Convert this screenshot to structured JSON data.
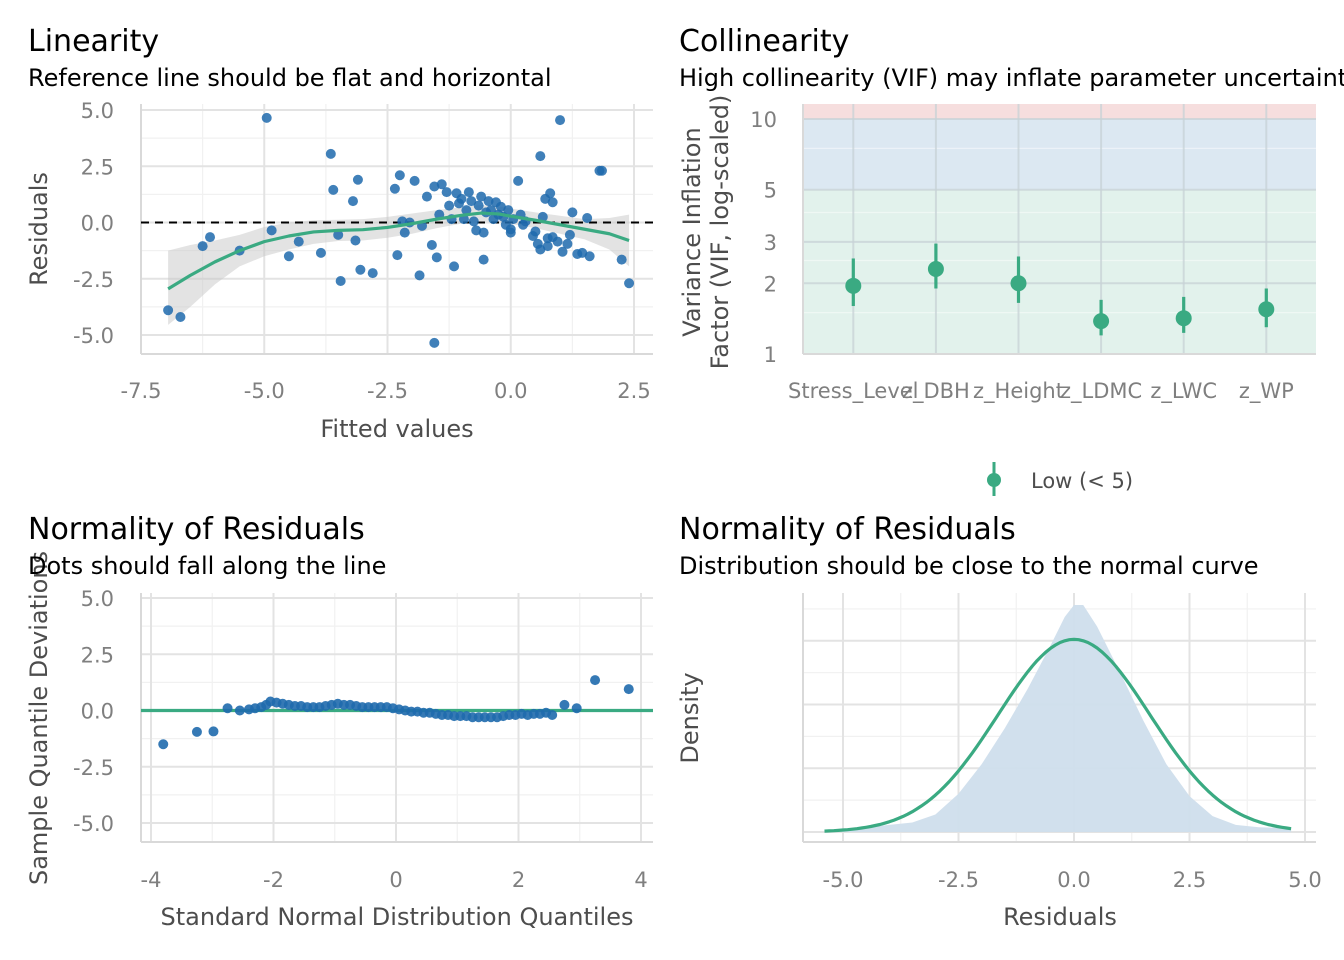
{
  "colors": {
    "points": "#1f6aad",
    "accent": "#3aaa82",
    "band": "#c8c8c8",
    "grid_major": "#e3e3e3",
    "grid_minor": "#f1f1f1",
    "axis_text": "#7f7f7f",
    "vif_low": "#e2f2ec",
    "vif_moderate": "#dce8f2",
    "vif_high": "#f6dede",
    "density_fill": "#cfdeec"
  },
  "chart_data": [
    {
      "type": "scatter",
      "title": "Linearity",
      "subtitle": "Reference line should be flat and horizontal",
      "xlabel": "Fitted values",
      "ylabel": "Residuals",
      "xlim": [
        -7.5,
        2.75
      ],
      "ylim": [
        -5.8,
        5.3
      ],
      "xticks": [
        -7.5,
        -5,
        -2.5,
        0,
        2.5
      ],
      "xtick_labels": [
        "-7.5",
        "-5.0",
        "-2.5",
        "0.0",
        "2.5"
      ],
      "yticks": [
        -5,
        -2.5,
        0,
        2.5,
        5
      ],
      "ytick_labels": [
        "-5.0",
        "-2.5",
        "0.0",
        "2.5",
        "5.0"
      ],
      "grid": true,
      "reference_line_y": 0,
      "points": [
        [
          -6.95,
          -3.9
        ],
        [
          -6.7,
          -4.2
        ],
        [
          -6.25,
          -1.05
        ],
        [
          -6.1,
          -0.65
        ],
        [
          -5.5,
          -1.25
        ],
        [
          -4.95,
          4.65
        ],
        [
          -4.85,
          -0.35
        ],
        [
          -4.5,
          -1.5
        ],
        [
          -4.3,
          -0.85
        ],
        [
          -3.85,
          -1.35
        ],
        [
          -3.65,
          3.05
        ],
        [
          -3.6,
          1.45
        ],
        [
          -3.5,
          -0.55
        ],
        [
          -3.45,
          -2.6
        ],
        [
          -3.2,
          0.95
        ],
        [
          -3.15,
          -0.8
        ],
        [
          -3.1,
          1.9
        ],
        [
          -3.05,
          -2.1
        ],
        [
          -2.8,
          -2.25
        ],
        [
          -2.35,
          1.5
        ],
        [
          -2.3,
          -1.45
        ],
        [
          -2.25,
          2.1
        ],
        [
          -2.2,
          0.05
        ],
        [
          -2.15,
          -0.45
        ],
        [
          -2.05,
          0.0
        ],
        [
          -1.95,
          1.85
        ],
        [
          -1.85,
          -2.35
        ],
        [
          -1.8,
          -0.15
        ],
        [
          -1.7,
          1.15
        ],
        [
          -1.6,
          -1.0
        ],
        [
          -1.55,
          1.6
        ],
        [
          -1.55,
          -5.35
        ],
        [
          -1.5,
          -1.55
        ],
        [
          -1.45,
          0.35
        ],
        [
          -1.4,
          1.7
        ],
        [
          -1.3,
          1.35
        ],
        [
          -1.25,
          0.75
        ],
        [
          -1.2,
          0.15
        ],
        [
          -1.15,
          -1.95
        ],
        [
          -1.1,
          1.3
        ],
        [
          -1.05,
          0.85
        ],
        [
          -1.0,
          1.05
        ],
        [
          -0.95,
          0.15
        ],
        [
          -0.9,
          0.55
        ],
        [
          -0.85,
          1.35
        ],
        [
          -0.8,
          0.95
        ],
        [
          -0.75,
          0.05
        ],
        [
          -0.7,
          -0.35
        ],
        [
          -0.65,
          0.75
        ],
        [
          -0.6,
          1.15
        ],
        [
          -0.55,
          -1.65
        ],
        [
          -0.55,
          -0.45
        ],
        [
          -0.5,
          0.45
        ],
        [
          -0.45,
          0.95
        ],
        [
          -0.4,
          0.55
        ],
        [
          -0.35,
          0.15
        ],
        [
          -0.3,
          0.9
        ],
        [
          -0.25,
          0.35
        ],
        [
          -0.2,
          0.7
        ],
        [
          -0.15,
          0.25
        ],
        [
          -0.1,
          -0.1
        ],
        [
          -0.05,
          0.55
        ],
        [
          0.0,
          -0.45
        ],
        [
          0.0,
          -0.3
        ],
        [
          0.05,
          0.15
        ],
        [
          0.15,
          1.85
        ],
        [
          0.2,
          0.35
        ],
        [
          0.25,
          -0.1
        ],
        [
          0.3,
          0.05
        ],
        [
          0.45,
          -0.6
        ],
        [
          0.5,
          -0.4
        ],
        [
          0.55,
          -0.95
        ],
        [
          0.6,
          2.95
        ],
        [
          0.6,
          -1.2
        ],
        [
          0.65,
          0.25
        ],
        [
          0.7,
          1.05
        ],
        [
          0.75,
          -0.7
        ],
        [
          0.75,
          -1.05
        ],
        [
          0.8,
          1.3
        ],
        [
          0.85,
          0.9
        ],
        [
          0.85,
          -0.65
        ],
        [
          0.95,
          -0.85
        ],
        [
          1.0,
          4.55
        ],
        [
          1.05,
          -1.3
        ],
        [
          1.15,
          -0.95
        ],
        [
          1.2,
          -0.55
        ],
        [
          1.25,
          0.45
        ],
        [
          1.35,
          -1.4
        ],
        [
          1.45,
          -1.35
        ],
        [
          1.55,
          0.2
        ],
        [
          1.6,
          -1.5
        ],
        [
          1.8,
          2.3
        ],
        [
          1.85,
          2.3
        ],
        [
          2.25,
          -1.65
        ],
        [
          2.4,
          -2.7
        ]
      ],
      "smooth_curve": [
        [
          -6.95,
          -2.95
        ],
        [
          -6.5,
          -2.35
        ],
        [
          -6.0,
          -1.75
        ],
        [
          -5.5,
          -1.25
        ],
        [
          -5.0,
          -0.85
        ],
        [
          -4.5,
          -0.6
        ],
        [
          -4.0,
          -0.42
        ],
        [
          -3.5,
          -0.35
        ],
        [
          -3.0,
          -0.32
        ],
        [
          -2.5,
          -0.22
        ],
        [
          -2.0,
          -0.05
        ],
        [
          -1.5,
          0.15
        ],
        [
          -1.0,
          0.32
        ],
        [
          -0.6,
          0.42
        ],
        [
          -0.25,
          0.38
        ],
        [
          0.0,
          0.28
        ],
        [
          0.5,
          0.1
        ],
        [
          1.0,
          -0.1
        ],
        [
          1.5,
          -0.3
        ],
        [
          2.0,
          -0.5
        ],
        [
          2.4,
          -0.8
        ]
      ],
      "band_upper": [
        [
          -6.95,
          -1.25
        ],
        [
          -6.5,
          -1.0
        ],
        [
          -6.0,
          -0.8
        ],
        [
          -5.5,
          -0.55
        ],
        [
          -5.0,
          -0.2
        ],
        [
          -4.5,
          0.0
        ],
        [
          -4.0,
          0.1
        ],
        [
          -3.5,
          0.12
        ],
        [
          -3.0,
          0.15
        ],
        [
          -2.5,
          0.25
        ],
        [
          -2.0,
          0.4
        ],
        [
          -1.5,
          0.55
        ],
        [
          -1.0,
          0.68
        ],
        [
          -0.6,
          0.78
        ],
        [
          -0.25,
          0.72
        ],
        [
          0.0,
          0.62
        ],
        [
          0.5,
          0.45
        ],
        [
          1.0,
          0.3
        ],
        [
          1.5,
          0.15
        ],
        [
          2.0,
          0.2
        ],
        [
          2.4,
          0.35
        ]
      ],
      "band_lower": [
        [
          -6.95,
          -4.55
        ],
        [
          -6.5,
          -3.75
        ],
        [
          -6.0,
          -2.75
        ],
        [
          -5.5,
          -1.95
        ],
        [
          -5.0,
          -1.5
        ],
        [
          -4.5,
          -1.2
        ],
        [
          -4.0,
          -0.95
        ],
        [
          -3.5,
          -0.82
        ],
        [
          -3.0,
          -0.8
        ],
        [
          -2.5,
          -0.68
        ],
        [
          -2.0,
          -0.5
        ],
        [
          -1.5,
          -0.25
        ],
        [
          -1.0,
          -0.05
        ],
        [
          -0.6,
          0.05
        ],
        [
          -0.25,
          0.02
        ],
        [
          0.0,
          -0.06
        ],
        [
          0.5,
          -0.25
        ],
        [
          1.0,
          -0.5
        ],
        [
          1.5,
          -0.75
        ],
        [
          2.0,
          -1.2
        ],
        [
          2.4,
          -1.95
        ]
      ]
    },
    {
      "type": "scatter",
      "title": "Collinearity",
      "subtitle": "High collinearity (VIF) may inflate parameter uncertainty",
      "xlabel": "",
      "ylabel": "Variance Inflation\nFactor (VIF, log-scaled)",
      "ylabel_lines": [
        "Variance Inflation",
        "Factor (VIF, log-scaled)"
      ],
      "y_scale": "log",
      "ylim": [
        1,
        12
      ],
      "yticks": [
        1,
        2,
        3,
        5,
        10
      ],
      "ytick_labels": [
        "1",
        "2",
        "3",
        "5",
        "10"
      ],
      "categories": [
        "Stress_Level",
        "z_DBH",
        "z_Height",
        "z_LDMC",
        "z_LWC",
        "z_WP"
      ],
      "vif": [
        1.95,
        2.3,
        2.0,
        1.38,
        1.42,
        1.55
      ],
      "ci_low": [
        1.6,
        1.9,
        1.65,
        1.2,
        1.23,
        1.3
      ],
      "ci_high": [
        2.55,
        2.95,
        2.6,
        1.7,
        1.75,
        1.9
      ],
      "zones": [
        {
          "from": 1,
          "to": 5,
          "color": "#e2f2ec"
        },
        {
          "from": 5,
          "to": 10,
          "color": "#dce8f2"
        },
        {
          "from": 10,
          "to": 12,
          "color": "#f6dede"
        }
      ],
      "legend": {
        "label": "Low (< 5)",
        "placement": "bottom"
      }
    },
    {
      "type": "scatter",
      "title": "Normality of Residuals",
      "subtitle": "Dots should fall along the line",
      "xlabel": "Standard Normal Distribution Quantiles",
      "ylabel": "Sample Quantile Deviations",
      "xlim": [
        -4.2,
        4.2
      ],
      "ylim": [
        -5.8,
        5.3
      ],
      "xticks": [
        -4,
        -2,
        0,
        2,
        4
      ],
      "xtick_labels": [
        "-4",
        "-2",
        "0",
        "2",
        "4"
      ],
      "yticks": [
        -5,
        -2.5,
        0,
        2.5,
        5
      ],
      "ytick_labels": [
        "-5.0",
        "-2.5",
        "0.0",
        "2.5",
        "5.0"
      ],
      "reference_line_y": 0,
      "sample_deviations": [
        [
          -3.8,
          -1.5
        ],
        [
          -3.25,
          -0.95
        ],
        [
          -2.98,
          -0.93
        ],
        [
          -2.75,
          0.1
        ],
        [
          -2.55,
          0.0
        ],
        [
          -2.4,
          0.05
        ],
        [
          -2.3,
          0.1
        ],
        [
          -2.2,
          0.15
        ],
        [
          -2.12,
          0.25
        ],
        [
          -2.05,
          0.4
        ],
        [
          -1.95,
          0.35
        ],
        [
          -1.85,
          0.3
        ],
        [
          -1.75,
          0.25
        ],
        [
          -1.65,
          0.2
        ],
        [
          -1.55,
          0.2
        ],
        [
          -1.45,
          0.15
        ],
        [
          -1.35,
          0.15
        ],
        [
          -1.25,
          0.15
        ],
        [
          -1.15,
          0.2
        ],
        [
          -1.05,
          0.25
        ],
        [
          -0.95,
          0.3
        ],
        [
          -0.85,
          0.25
        ],
        [
          -0.75,
          0.25
        ],
        [
          -0.65,
          0.2
        ],
        [
          -0.55,
          0.15
        ],
        [
          -0.45,
          0.15
        ],
        [
          -0.35,
          0.15
        ],
        [
          -0.25,
          0.15
        ],
        [
          -0.15,
          0.15
        ],
        [
          -0.05,
          0.1
        ],
        [
          0.05,
          0.05
        ],
        [
          0.15,
          0.0
        ],
        [
          0.25,
          -0.05
        ],
        [
          0.35,
          -0.05
        ],
        [
          0.45,
          -0.1
        ],
        [
          0.55,
          -0.1
        ],
        [
          0.65,
          -0.15
        ],
        [
          0.75,
          -0.2
        ],
        [
          0.85,
          -0.2
        ],
        [
          0.95,
          -0.25
        ],
        [
          1.05,
          -0.25
        ],
        [
          1.15,
          -0.25
        ],
        [
          1.25,
          -0.3
        ],
        [
          1.35,
          -0.3
        ],
        [
          1.45,
          -0.3
        ],
        [
          1.55,
          -0.3
        ],
        [
          1.65,
          -0.3
        ],
        [
          1.75,
          -0.25
        ],
        [
          1.85,
          -0.2
        ],
        [
          1.95,
          -0.2
        ],
        [
          2.05,
          -0.15
        ],
        [
          2.15,
          -0.2
        ],
        [
          2.25,
          -0.15
        ],
        [
          2.35,
          -0.15
        ],
        [
          2.45,
          -0.1
        ],
        [
          2.55,
          -0.2
        ],
        [
          2.75,
          0.25
        ],
        [
          2.95,
          0.1
        ],
        [
          3.25,
          1.35
        ],
        [
          3.8,
          0.95
        ]
      ]
    },
    {
      "type": "area",
      "title": "Normality of Residuals",
      "subtitle": "Distribution should be close to the normal curve",
      "xlabel": "Residuals",
      "ylabel": "Density",
      "xlim": [
        -5.75,
        5.25
      ],
      "ylim": [
        0,
        0.3
      ],
      "xticks": [
        -5,
        -2.5,
        0,
        2.5,
        5
      ],
      "xtick_labels": [
        "-5.0",
        "-2.5",
        "0.0",
        "2.5",
        "5.0"
      ],
      "empirical_density": [
        [
          -5.4,
          0.003
        ],
        [
          -5.0,
          0.004
        ],
        [
          -4.5,
          0.006
        ],
        [
          -4.0,
          0.009
        ],
        [
          -3.5,
          0.012
        ],
        [
          -3.0,
          0.022
        ],
        [
          -2.5,
          0.048
        ],
        [
          -2.0,
          0.085
        ],
        [
          -1.5,
          0.13
        ],
        [
          -1.0,
          0.18
        ],
        [
          -0.5,
          0.235
        ],
        [
          -0.2,
          0.27
        ],
        [
          0.0,
          0.285
        ],
        [
          0.2,
          0.285
        ],
        [
          0.5,
          0.258
        ],
        [
          1.0,
          0.2
        ],
        [
          1.5,
          0.14
        ],
        [
          2.0,
          0.085
        ],
        [
          2.5,
          0.045
        ],
        [
          3.0,
          0.02
        ],
        [
          3.5,
          0.009
        ],
        [
          4.0,
          0.006
        ],
        [
          4.5,
          0.005
        ],
        [
          4.7,
          0.004
        ]
      ],
      "normal_curve": {
        "mean": 0.0,
        "sd": 1.65,
        "x_range": [
          -5.4,
          4.7
        ]
      }
    }
  ]
}
